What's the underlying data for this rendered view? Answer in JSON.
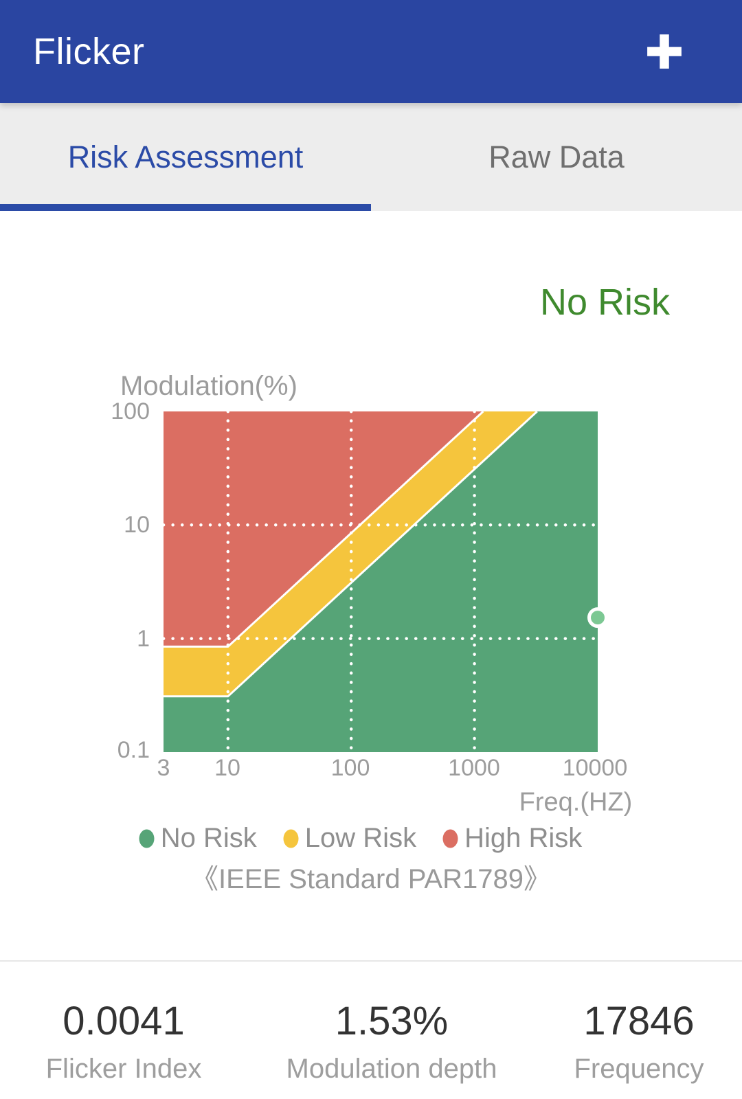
{
  "header": {
    "title": "Flicker",
    "add_button": "+"
  },
  "tabs": [
    {
      "label": "Risk Assessment",
      "active": true
    },
    {
      "label": "Raw Data",
      "active": false
    }
  ],
  "status": {
    "text": "No Risk"
  },
  "chart_data": {
    "type": "area",
    "title": "",
    "xlabel": "Freq.(HZ)",
    "ylabel": "Modulation(%)",
    "x_scale": "log",
    "y_scale": "log",
    "xlim": [
      3,
      10000
    ],
    "ylim": [
      0.1,
      100
    ],
    "x_ticks": [
      "3",
      "10",
      "100",
      "1000",
      "10000"
    ],
    "y_ticks": [
      "100",
      "10",
      "1",
      "0.1"
    ],
    "grid": "white dotted, vertical at 10/100/1000 Hz, horizontal at 1% and 10%",
    "regions": [
      {
        "name": "High Risk",
        "color": "#DB6E62",
        "boundary_points": [
          [
            3,
            0.85
          ],
          [
            10,
            0.85
          ],
          [
            1176,
            100
          ]
        ],
        "rule": "Modulation% above 0.085 x f (floor 0.85% below 10 Hz)"
      },
      {
        "name": "Low Risk",
        "color": "#F5C53D",
        "boundary_points": [
          [
            3,
            0.31
          ],
          [
            10,
            0.31
          ],
          [
            3226,
            100
          ]
        ],
        "rule": "Modulation% between 0.031 x f and 0.085 x f"
      },
      {
        "name": "No Risk",
        "color": "#56A477",
        "rule": "Modulation% below 0.031 x f"
      }
    ],
    "point": {
      "freq_hz": 17846,
      "modulation_pct": 1.53,
      "clamped_to_x_max": true
    },
    "legend": [
      {
        "label": "No Risk",
        "color": "#56A477"
      },
      {
        "label": "Low Risk",
        "color": "#F5C53D"
      },
      {
        "label": "High Risk",
        "color": "#DB6E62"
      }
    ],
    "caption": "《IEEE Standard PAR1789》",
    "legend_position": "bottom"
  },
  "stats": [
    {
      "value": "0.0041",
      "label": "Flicker Index"
    },
    {
      "value": "1.53%",
      "label": "Modulation depth"
    },
    {
      "value": "17846",
      "label": "Frequency"
    }
  ],
  "colors": {
    "header_bg": "#2A45A1",
    "accent_blue": "#2B4BA7",
    "tab_inactive": "#6F6F6F",
    "status_green": "#3F8A2E",
    "risk_red": "#DB6E62",
    "risk_yellow": "#F5C53D",
    "risk_green": "#56A477",
    "point_fill": "#7CC893",
    "axis_gray": "#9C9C9C",
    "legend_gray": "#8F8F8F",
    "value_dark": "#333333"
  }
}
